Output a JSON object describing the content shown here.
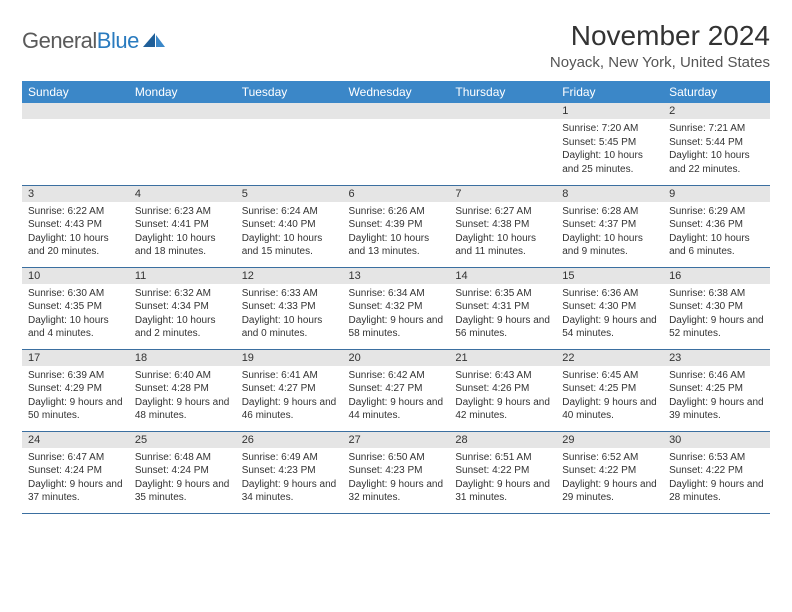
{
  "logo": {
    "text_gray": "General",
    "text_blue": "Blue"
  },
  "title": "November 2024",
  "location": "Noyack, New York, United States",
  "colors": {
    "header_bg": "#3b87c8",
    "header_fg": "#ffffff",
    "daynum_bg": "#e5e5e5",
    "row_border": "#3b6fa0",
    "logo_gray": "#5a5a5a",
    "logo_blue": "#2a7bbf",
    "text": "#333333"
  },
  "weekdays": [
    "Sunday",
    "Monday",
    "Tuesday",
    "Wednesday",
    "Thursday",
    "Friday",
    "Saturday"
  ],
  "weeks": [
    [
      {
        "n": "",
        "sr": "",
        "ss": "",
        "dl": ""
      },
      {
        "n": "",
        "sr": "",
        "ss": "",
        "dl": ""
      },
      {
        "n": "",
        "sr": "",
        "ss": "",
        "dl": ""
      },
      {
        "n": "",
        "sr": "",
        "ss": "",
        "dl": ""
      },
      {
        "n": "",
        "sr": "",
        "ss": "",
        "dl": ""
      },
      {
        "n": "1",
        "sr": "Sunrise: 7:20 AM",
        "ss": "Sunset: 5:45 PM",
        "dl": "Daylight: 10 hours and 25 minutes."
      },
      {
        "n": "2",
        "sr": "Sunrise: 7:21 AM",
        "ss": "Sunset: 5:44 PM",
        "dl": "Daylight: 10 hours and 22 minutes."
      }
    ],
    [
      {
        "n": "3",
        "sr": "Sunrise: 6:22 AM",
        "ss": "Sunset: 4:43 PM",
        "dl": "Daylight: 10 hours and 20 minutes."
      },
      {
        "n": "4",
        "sr": "Sunrise: 6:23 AM",
        "ss": "Sunset: 4:41 PM",
        "dl": "Daylight: 10 hours and 18 minutes."
      },
      {
        "n": "5",
        "sr": "Sunrise: 6:24 AM",
        "ss": "Sunset: 4:40 PM",
        "dl": "Daylight: 10 hours and 15 minutes."
      },
      {
        "n": "6",
        "sr": "Sunrise: 6:26 AM",
        "ss": "Sunset: 4:39 PM",
        "dl": "Daylight: 10 hours and 13 minutes."
      },
      {
        "n": "7",
        "sr": "Sunrise: 6:27 AM",
        "ss": "Sunset: 4:38 PM",
        "dl": "Daylight: 10 hours and 11 minutes."
      },
      {
        "n": "8",
        "sr": "Sunrise: 6:28 AM",
        "ss": "Sunset: 4:37 PM",
        "dl": "Daylight: 10 hours and 9 minutes."
      },
      {
        "n": "9",
        "sr": "Sunrise: 6:29 AM",
        "ss": "Sunset: 4:36 PM",
        "dl": "Daylight: 10 hours and 6 minutes."
      }
    ],
    [
      {
        "n": "10",
        "sr": "Sunrise: 6:30 AM",
        "ss": "Sunset: 4:35 PM",
        "dl": "Daylight: 10 hours and 4 minutes."
      },
      {
        "n": "11",
        "sr": "Sunrise: 6:32 AM",
        "ss": "Sunset: 4:34 PM",
        "dl": "Daylight: 10 hours and 2 minutes."
      },
      {
        "n": "12",
        "sr": "Sunrise: 6:33 AM",
        "ss": "Sunset: 4:33 PM",
        "dl": "Daylight: 10 hours and 0 minutes."
      },
      {
        "n": "13",
        "sr": "Sunrise: 6:34 AM",
        "ss": "Sunset: 4:32 PM",
        "dl": "Daylight: 9 hours and 58 minutes."
      },
      {
        "n": "14",
        "sr": "Sunrise: 6:35 AM",
        "ss": "Sunset: 4:31 PM",
        "dl": "Daylight: 9 hours and 56 minutes."
      },
      {
        "n": "15",
        "sr": "Sunrise: 6:36 AM",
        "ss": "Sunset: 4:30 PM",
        "dl": "Daylight: 9 hours and 54 minutes."
      },
      {
        "n": "16",
        "sr": "Sunrise: 6:38 AM",
        "ss": "Sunset: 4:30 PM",
        "dl": "Daylight: 9 hours and 52 minutes."
      }
    ],
    [
      {
        "n": "17",
        "sr": "Sunrise: 6:39 AM",
        "ss": "Sunset: 4:29 PM",
        "dl": "Daylight: 9 hours and 50 minutes."
      },
      {
        "n": "18",
        "sr": "Sunrise: 6:40 AM",
        "ss": "Sunset: 4:28 PM",
        "dl": "Daylight: 9 hours and 48 minutes."
      },
      {
        "n": "19",
        "sr": "Sunrise: 6:41 AM",
        "ss": "Sunset: 4:27 PM",
        "dl": "Daylight: 9 hours and 46 minutes."
      },
      {
        "n": "20",
        "sr": "Sunrise: 6:42 AM",
        "ss": "Sunset: 4:27 PM",
        "dl": "Daylight: 9 hours and 44 minutes."
      },
      {
        "n": "21",
        "sr": "Sunrise: 6:43 AM",
        "ss": "Sunset: 4:26 PM",
        "dl": "Daylight: 9 hours and 42 minutes."
      },
      {
        "n": "22",
        "sr": "Sunrise: 6:45 AM",
        "ss": "Sunset: 4:25 PM",
        "dl": "Daylight: 9 hours and 40 minutes."
      },
      {
        "n": "23",
        "sr": "Sunrise: 6:46 AM",
        "ss": "Sunset: 4:25 PM",
        "dl": "Daylight: 9 hours and 39 minutes."
      }
    ],
    [
      {
        "n": "24",
        "sr": "Sunrise: 6:47 AM",
        "ss": "Sunset: 4:24 PM",
        "dl": "Daylight: 9 hours and 37 minutes."
      },
      {
        "n": "25",
        "sr": "Sunrise: 6:48 AM",
        "ss": "Sunset: 4:24 PM",
        "dl": "Daylight: 9 hours and 35 minutes."
      },
      {
        "n": "26",
        "sr": "Sunrise: 6:49 AM",
        "ss": "Sunset: 4:23 PM",
        "dl": "Daylight: 9 hours and 34 minutes."
      },
      {
        "n": "27",
        "sr": "Sunrise: 6:50 AM",
        "ss": "Sunset: 4:23 PM",
        "dl": "Daylight: 9 hours and 32 minutes."
      },
      {
        "n": "28",
        "sr": "Sunrise: 6:51 AM",
        "ss": "Sunset: 4:22 PM",
        "dl": "Daylight: 9 hours and 31 minutes."
      },
      {
        "n": "29",
        "sr": "Sunrise: 6:52 AM",
        "ss": "Sunset: 4:22 PM",
        "dl": "Daylight: 9 hours and 29 minutes."
      },
      {
        "n": "30",
        "sr": "Sunrise: 6:53 AM",
        "ss": "Sunset: 4:22 PM",
        "dl": "Daylight: 9 hours and 28 minutes."
      }
    ]
  ]
}
